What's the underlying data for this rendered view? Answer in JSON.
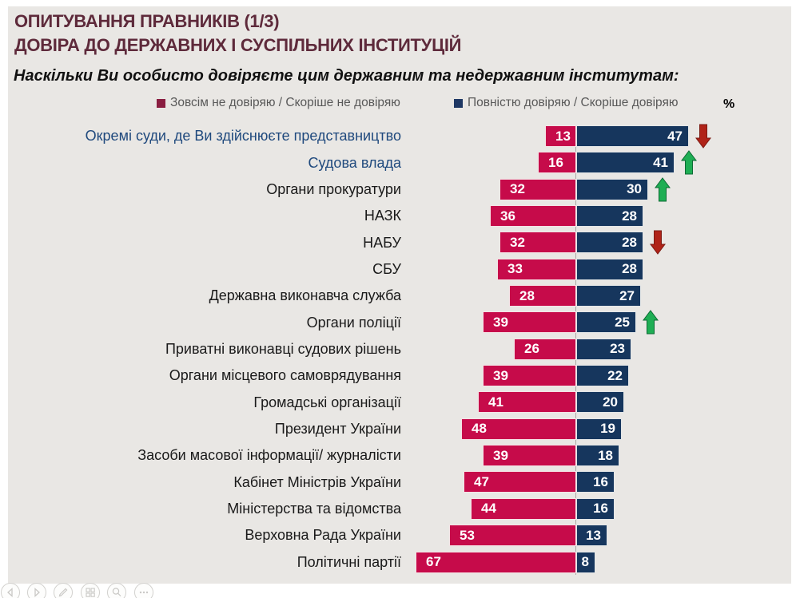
{
  "slide": {
    "title_line1": "ОПИТУВАННЯ ПРАВНИКІВ (1/3)",
    "title_line2": "ДОВІРА ДО ДЕРЖАВНИХ І СУСПІЛЬНИХ ІНСТИТУЦІЙ",
    "subtitle": "Наскільки Ви особисто довіряєте цим державним та недержавним інститутам:",
    "percent_label": "%"
  },
  "legend": [
    {
      "label": "Зовсім не довіряю / Скоріше не довіряю",
      "marker_color": "#8a1e41"
    },
    {
      "label": "Повністю довіряю / Скоріше довіряю",
      "marker_color": "#1f3864"
    }
  ],
  "chart_data": {
    "type": "bar",
    "orientation": "horizontal-diverging",
    "unit": "%",
    "categories": [
      "Окремі суди, де Ви здійснюєте представництво",
      "Судова влада",
      "Органи прокуратури",
      "НАЗК",
      "НАБУ",
      "СБУ",
      "Державна виконавча служба",
      "Органи поліції",
      "Приватні виконавці судових рішень",
      "Органи місцевого самоврядування",
      "Громадські організації",
      "Президент України",
      "Засоби масової інформації/ журналісти",
      "Кабінет Міністрів України",
      "Міністерства та відомства",
      "Верховна Рада України",
      "Політичні партії"
    ],
    "series": [
      {
        "name": "Зовсім не довіряю / Скоріше не довіряю",
        "color": "#c60b4a",
        "values": [
          13,
          16,
          32,
          36,
          32,
          33,
          28,
          39,
          26,
          39,
          41,
          48,
          39,
          47,
          44,
          53,
          67
        ]
      },
      {
        "name": "Повністю довіряю / Скоріше довіряю",
        "color": "#16365d",
        "values": [
          47,
          41,
          30,
          28,
          28,
          28,
          27,
          25,
          23,
          22,
          20,
          19,
          18,
          16,
          16,
          13,
          8
        ]
      }
    ],
    "highlighted_rows": [
      0,
      1
    ],
    "trend_arrows": [
      {
        "row": 0,
        "direction": "down",
        "color": "#b02318"
      },
      {
        "row": 1,
        "direction": "up",
        "color": "#1fae54"
      },
      {
        "row": 2,
        "direction": "up",
        "color": "#1fae54"
      },
      {
        "row": 4,
        "direction": "down",
        "color": "#b02318"
      },
      {
        "row": 7,
        "direction": "up",
        "color": "#1fae54"
      }
    ],
    "legend_position": "top",
    "grid": false
  },
  "toolbar": {
    "buttons": [
      "previous-slide",
      "next-slide",
      "pen-tools",
      "see-all-slides",
      "zoom-slide",
      "more-options"
    ]
  }
}
